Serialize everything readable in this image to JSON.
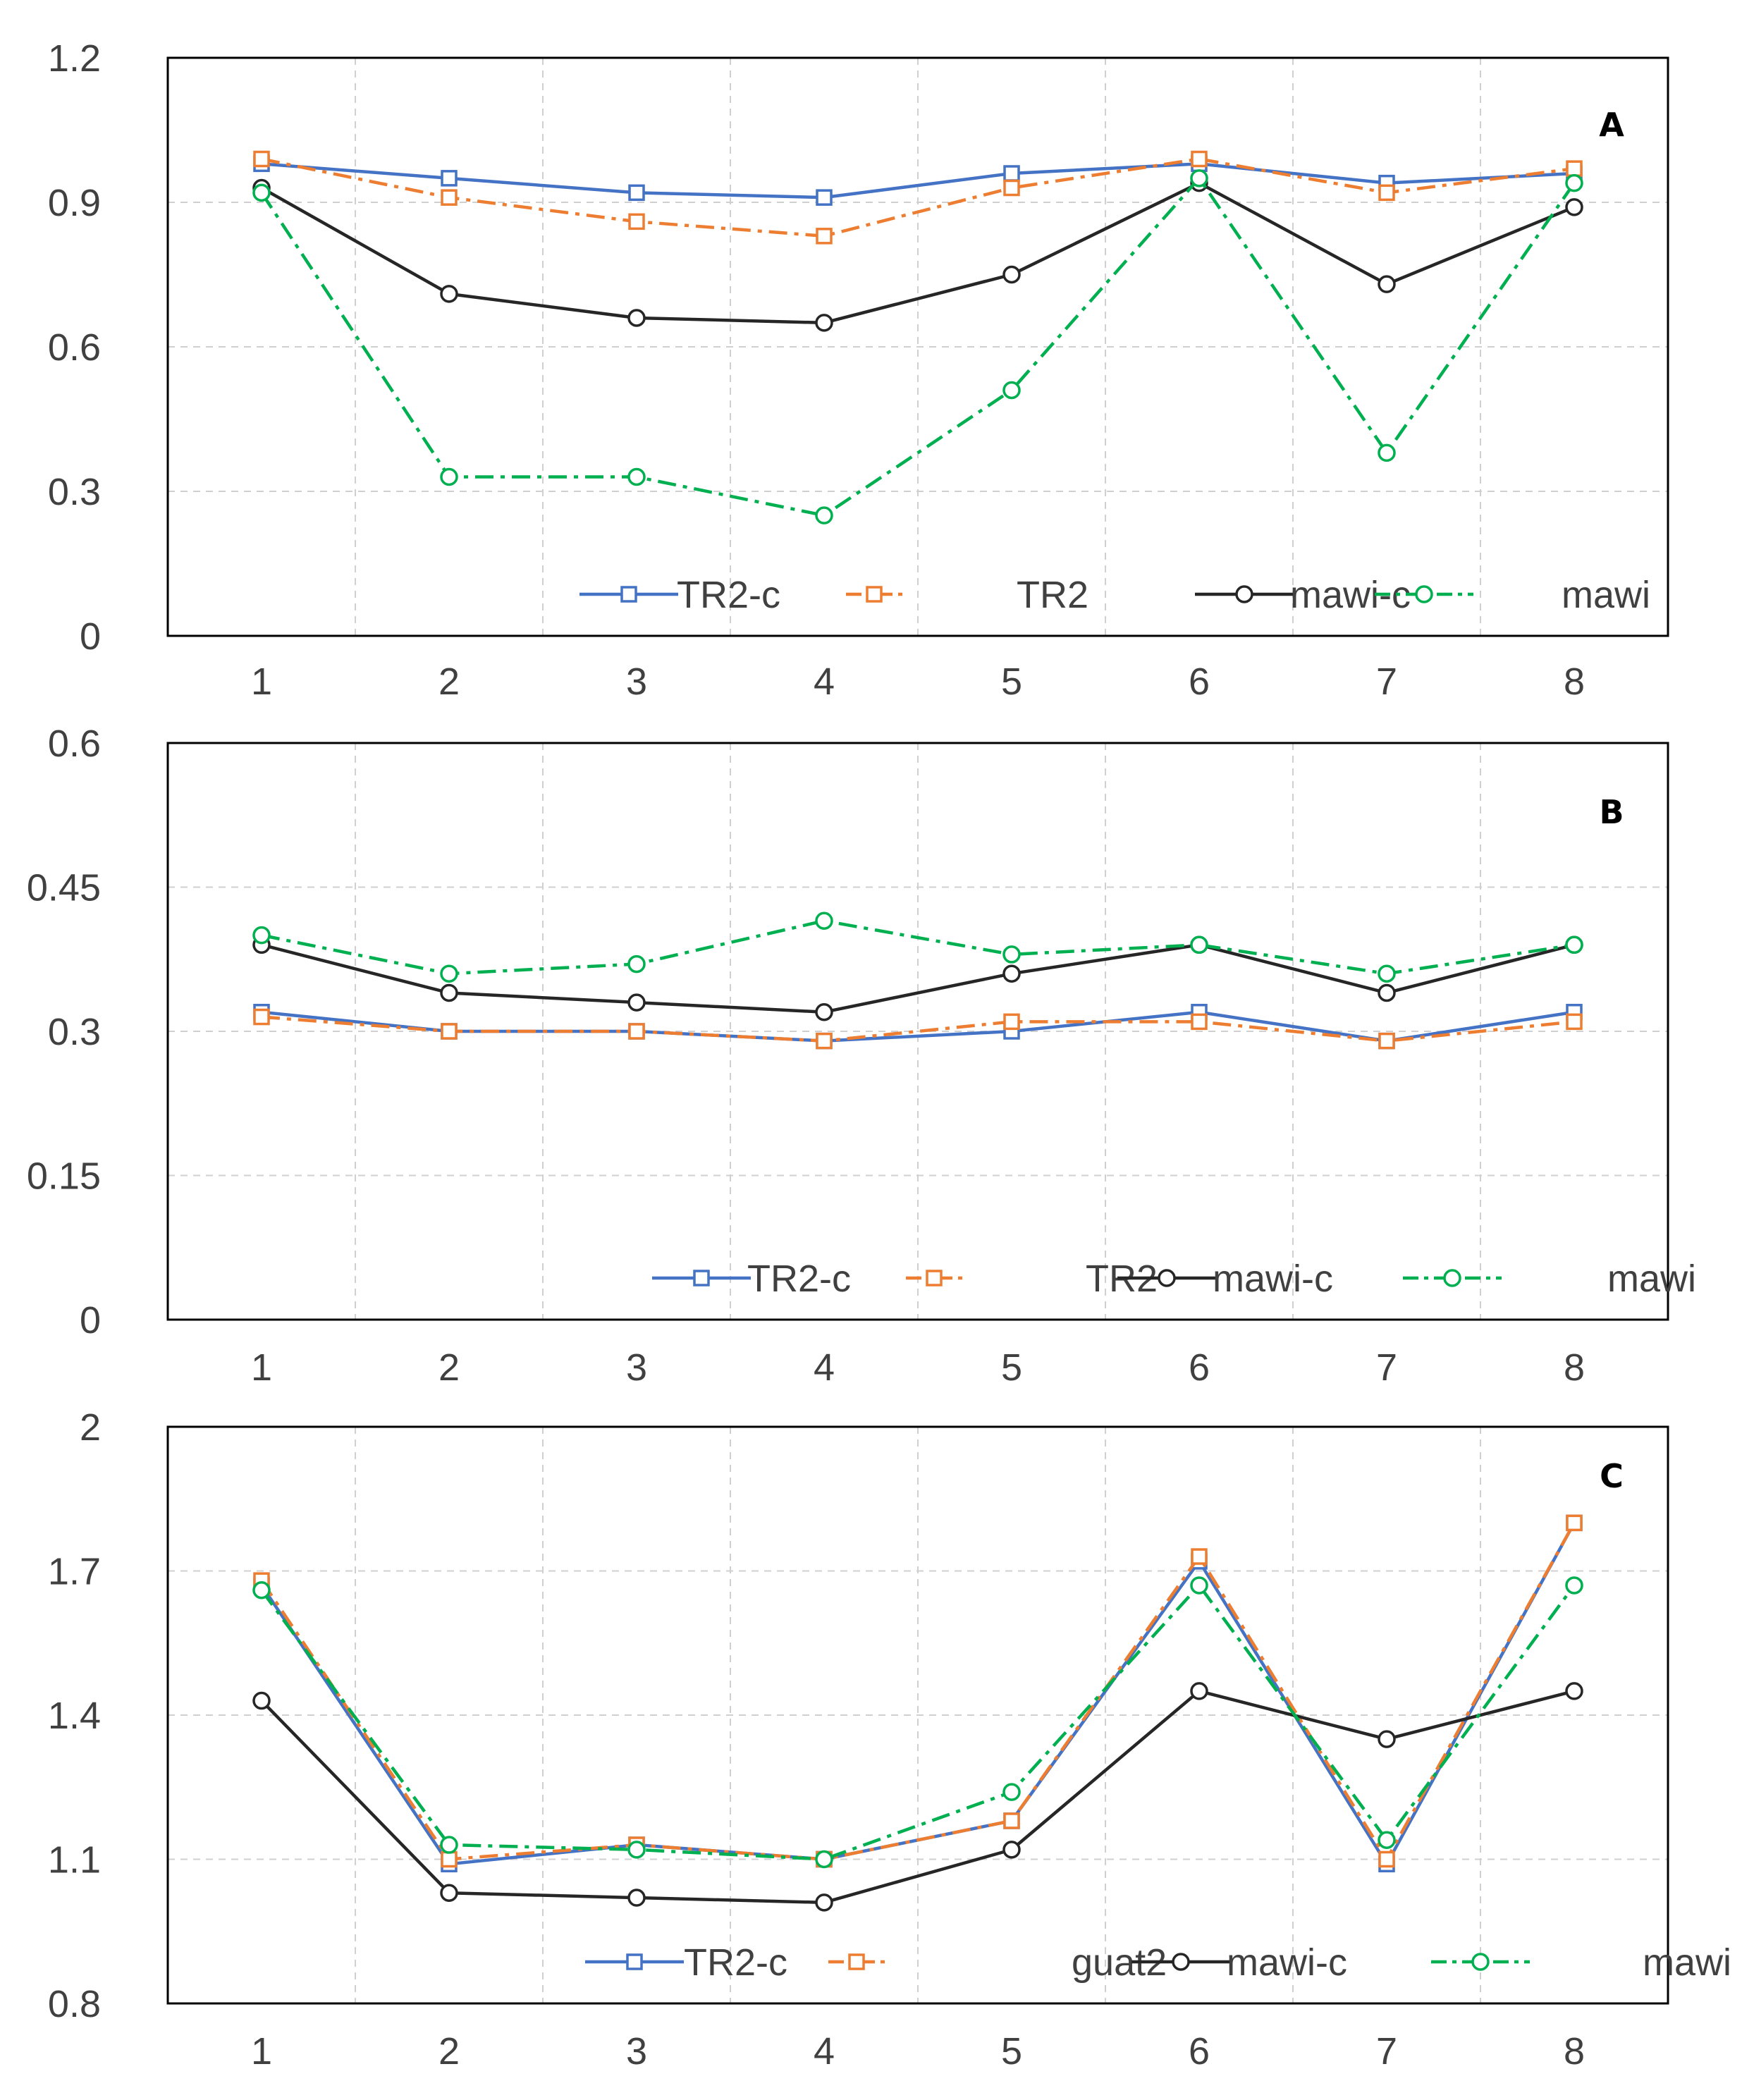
{
  "chart_data": [
    {
      "type": "line",
      "panel": "A",
      "categories": [
        "1",
        "2",
        "3",
        "4",
        "5",
        "6",
        "7",
        "8"
      ],
      "ylim": [
        0,
        1.2
      ],
      "yticks": [
        "0",
        "0.3",
        "0.6",
        "0.9",
        "1.2"
      ],
      "grid": true,
      "legend": "bottom-right",
      "series": [
        {
          "name": "TR2-c",
          "color": "#4472C4",
          "dash": "solid",
          "marker": "square",
          "values": [
            0.98,
            0.95,
            0.92,
            0.91,
            0.96,
            0.98,
            0.94,
            0.96
          ]
        },
        {
          "name": "TR2",
          "color": "#ED7D31",
          "dash": "dashdot",
          "marker": "square",
          "values": [
            0.99,
            0.91,
            0.86,
            0.83,
            0.93,
            0.99,
            0.92,
            0.97
          ]
        },
        {
          "name": "mawi-c",
          "color": "#262626",
          "dash": "solid",
          "marker": "circle",
          "values": [
            0.93,
            0.71,
            0.66,
            0.65,
            0.75,
            0.94,
            0.73,
            0.89
          ]
        },
        {
          "name": "mawi",
          "color": "#00B050",
          "dash": "dashdot",
          "marker": "circle",
          "values": [
            0.92,
            0.33,
            0.33,
            0.25,
            0.51,
            0.95,
            0.38,
            0.94
          ]
        }
      ]
    },
    {
      "type": "line",
      "panel": "B",
      "categories": [
        "1",
        "2",
        "3",
        "4",
        "5",
        "6",
        "7",
        "8"
      ],
      "ylim": [
        0,
        0.6
      ],
      "yticks": [
        "0",
        "0.15",
        "0.3",
        "0.45",
        "0.6"
      ],
      "grid": true,
      "legend": "bottom-right",
      "series": [
        {
          "name": "TR2-c",
          "color": "#4472C4",
          "dash": "solid",
          "marker": "square",
          "values": [
            0.32,
            0.3,
            0.3,
            0.29,
            0.3,
            0.32,
            0.29,
            0.32
          ]
        },
        {
          "name": "TR2",
          "color": "#ED7D31",
          "dash": "dashdot",
          "marker": "square",
          "values": [
            0.315,
            0.3,
            0.3,
            0.29,
            0.31,
            0.31,
            0.29,
            0.31
          ]
        },
        {
          "name": "mawi-c",
          "color": "#262626",
          "dash": "solid",
          "marker": "circle",
          "values": [
            0.39,
            0.34,
            0.33,
            0.32,
            0.36,
            0.39,
            0.34,
            0.39
          ]
        },
        {
          "name": "mawi",
          "color": "#00B050",
          "dash": "dashdot",
          "marker": "circle",
          "values": [
            0.4,
            0.36,
            0.37,
            0.415,
            0.38,
            0.39,
            0.36,
            0.39
          ]
        }
      ]
    },
    {
      "type": "line",
      "panel": "C",
      "categories": [
        "1",
        "2",
        "3",
        "4",
        "5",
        "6",
        "7",
        "8"
      ],
      "ylim": [
        0.8,
        2
      ],
      "yticks": [
        "0.8",
        "1.1",
        "1.4",
        "1.7",
        "2"
      ],
      "grid": true,
      "legend": "bottom-right",
      "series": [
        {
          "name": "TR2-c",
          "color": "#4472C4",
          "dash": "solid",
          "marker": "square",
          "values": [
            1.67,
            1.09,
            1.13,
            1.1,
            1.18,
            1.72,
            1.09,
            1.8
          ]
        },
        {
          "name": "guat2",
          "color": "#ED7D31",
          "dash": "dashdot",
          "marker": "square",
          "values": [
            1.68,
            1.1,
            1.13,
            1.1,
            1.18,
            1.73,
            1.1,
            1.8
          ]
        },
        {
          "name": "mawi-c",
          "color": "#262626",
          "dash": "solid",
          "marker": "circle",
          "values": [
            1.43,
            1.03,
            1.02,
            1.01,
            1.12,
            1.45,
            1.35,
            1.45
          ]
        },
        {
          "name": "mawi",
          "color": "#00B050",
          "dash": "dashdot",
          "marker": "circle",
          "values": [
            1.66,
            1.13,
            1.12,
            1.1,
            1.24,
            1.67,
            1.14,
            1.67
          ]
        }
      ]
    }
  ]
}
